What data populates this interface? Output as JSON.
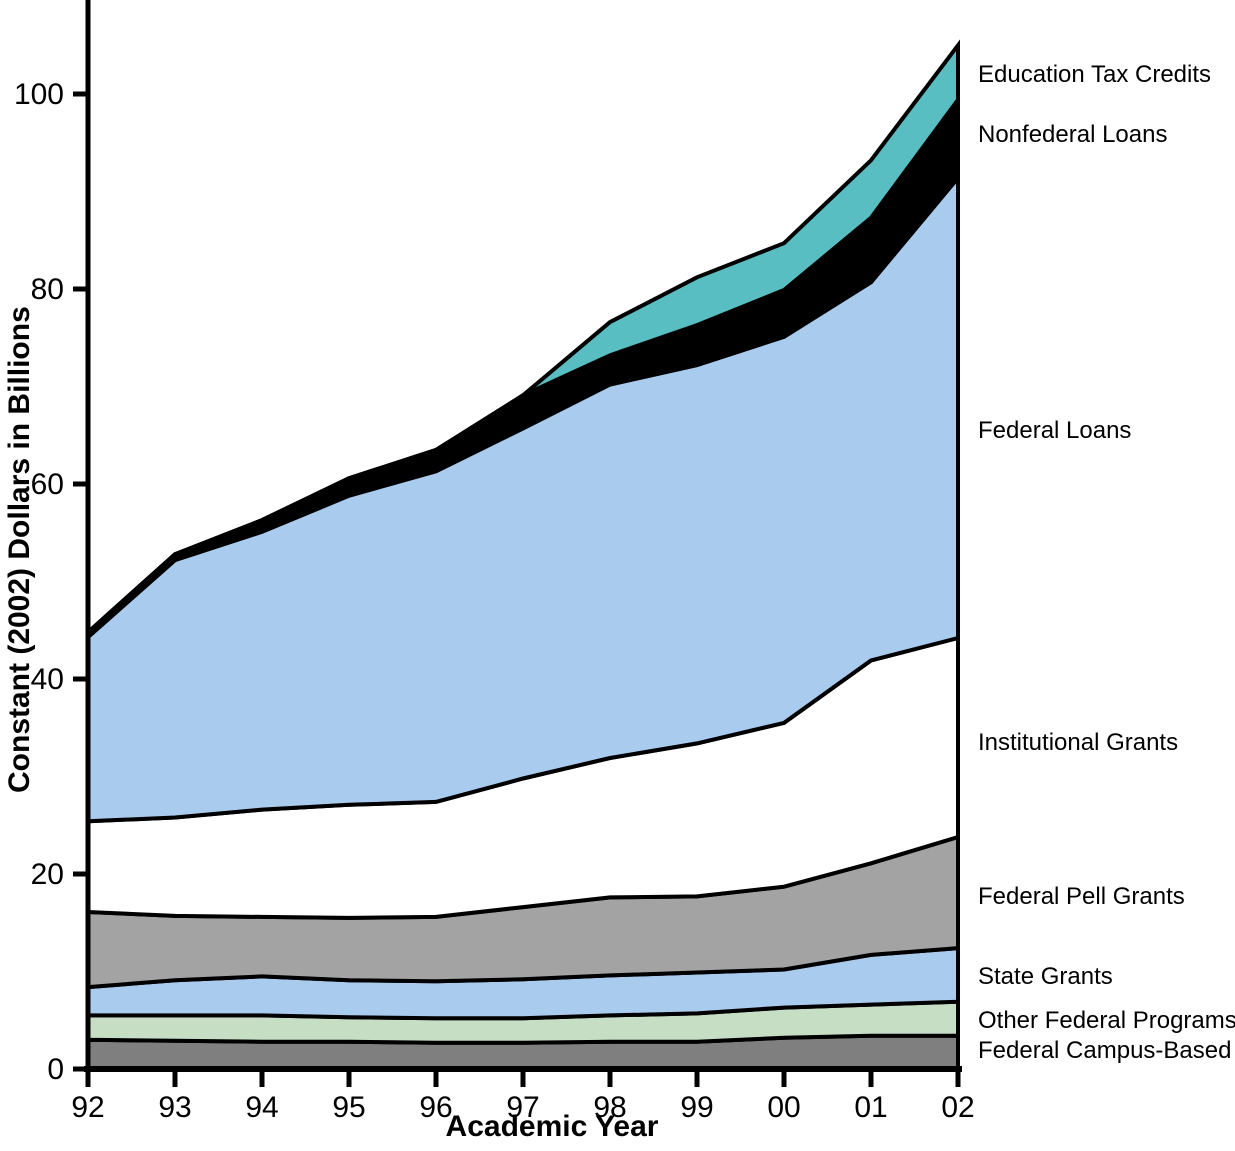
{
  "chart_data": {
    "type": "area",
    "stacked": true,
    "xlabel": "Academic Year",
    "ylabel": "Constant (2002) Dollars in Billions",
    "categories": [
      "92",
      "93",
      "94",
      "95",
      "96",
      "97",
      "98",
      "99",
      "00",
      "01",
      "02"
    ],
    "y_ticks": [
      0,
      20,
      40,
      60,
      80,
      100
    ],
    "ylim": [
      0,
      110
    ],
    "grid": false,
    "legend_position": "right-annotations",
    "axis_color": "#000000",
    "background_color": "#ffffff",
    "series": [
      {
        "name": "Federal Campus-Based",
        "color": "#7f7f7f",
        "values": [
          3.0,
          2.9,
          2.8,
          2.8,
          2.7,
          2.7,
          2.8,
          2.8,
          3.2,
          3.4,
          3.4
        ]
      },
      {
        "name": "Other Federal Programs",
        "color": "#c6dec4",
        "values": [
          2.5,
          2.6,
          2.7,
          2.5,
          2.5,
          2.5,
          2.7,
          2.9,
          3.1,
          3.2,
          3.5
        ]
      },
      {
        "name": "State Grants",
        "color": "#a9cbee",
        "values": [
          2.9,
          3.6,
          4.0,
          3.8,
          3.8,
          4.0,
          4.1,
          4.2,
          3.9,
          5.1,
          5.5
        ]
      },
      {
        "name": "Federal Pell Grants",
        "color": "#a3a3a3",
        "values": [
          7.7,
          6.6,
          6.1,
          6.4,
          6.6,
          7.4,
          8.0,
          7.8,
          8.5,
          9.4,
          11.4
        ]
      },
      {
        "name": "Institutional Grants",
        "color": "#ffffff",
        "values": [
          9.3,
          10.1,
          11.0,
          11.6,
          11.8,
          13.2,
          14.3,
          15.7,
          16.8,
          20.8,
          20.4
        ]
      },
      {
        "name": "Federal Loans",
        "color": "#a9cbee",
        "values": [
          18.9,
          26.4,
          28.5,
          31.7,
          33.9,
          35.9,
          38.3,
          38.8,
          39.6,
          38.8,
          47.2
        ]
      },
      {
        "name": "Nonfederal Loans",
        "color": "#000000",
        "values": [
          0.5,
          0.6,
          1.2,
          1.8,
          2.2,
          3.4,
          3.0,
          4.1,
          4.8,
          6.6,
          8.0
        ]
      },
      {
        "name": "Education Tax Credits",
        "color": "#58bec1",
        "values": [
          0,
          0,
          0,
          0,
          0,
          0,
          3.4,
          4.9,
          4.8,
          5.9,
          5.6
        ]
      }
    ],
    "annotation_labels_top_to_bottom": [
      "Education Tax Credits",
      "Nonfederal Loans",
      "Federal Loans",
      "Institutional Grants",
      "Federal Pell Grants",
      "State Grants",
      "Other Federal Programs",
      "Federal Campus-Based"
    ]
  }
}
